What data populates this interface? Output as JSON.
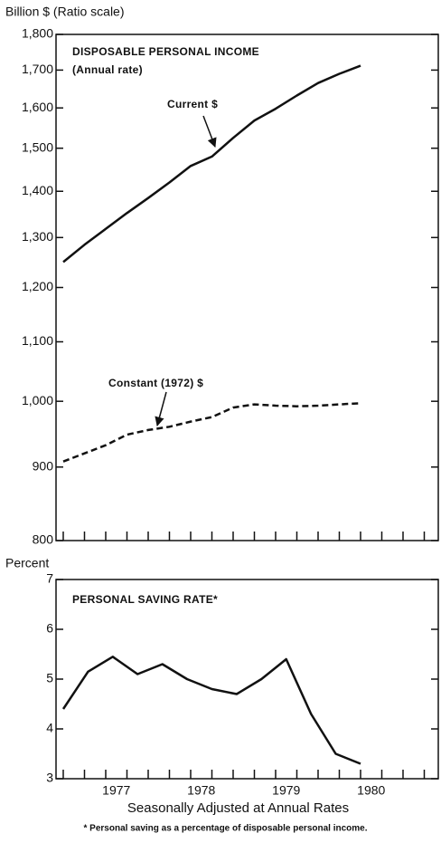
{
  "chart_data": [
    {
      "type": "line",
      "ylabel": "Billion $ (Ratio scale)",
      "title": "DISPOSABLE PERSONAL INCOME",
      "subtitle": "(Annual rate)",
      "log": true,
      "ylim": [
        800,
        1800
      ],
      "yticks": [
        800,
        900,
        {
          "value": 1000,
          "label": "1,000"
        },
        {
          "value": 1100,
          "label": "1,100"
        },
        {
          "value": 1200,
          "label": "1,200"
        },
        {
          "value": 1300,
          "label": "1,300"
        },
        {
          "value": 1400,
          "label": "1,400"
        },
        {
          "value": 1500,
          "label": "1,500"
        },
        {
          "value": 1600,
          "label": "1,600"
        },
        {
          "value": 1700,
          "label": "1,700"
        },
        {
          "value": 1800,
          "label": "1,800"
        }
      ],
      "xlim": [
        1976.79,
        1981.29
      ],
      "x": [
        1976.875,
        1977.125,
        1977.375,
        1977.625,
        1977.875,
        1978.125,
        1978.375,
        1978.625,
        1978.875,
        1979.125,
        1979.375,
        1979.625,
        1979.875,
        1980.125,
        1980.375
      ],
      "series": [
        {
          "name": "Current $",
          "color": "#111111",
          "dash": false,
          "values": [
            1250,
            1285,
            1318,
            1352,
            1385,
            1420,
            1458,
            1480,
            1525,
            1568,
            1598,
            1632,
            1665,
            1690,
            1712
          ]
        },
        {
          "name": "Constant (1972) $",
          "color": "#111111",
          "dash": true,
          "values": [
            908,
            920,
            932,
            948,
            955,
            960,
            968,
            975,
            990,
            995,
            993,
            992,
            993,
            995,
            997
          ]
        }
      ]
    },
    {
      "type": "line",
      "ylabel": "Percent",
      "title": "PERSONAL SAVING RATE*",
      "ylim": [
        3,
        7
      ],
      "yticks": [
        3,
        4,
        5,
        6,
        7
      ],
      "xlim": [
        1976.79,
        1981.29
      ],
      "xticks": [
        {
          "value": 1977.5,
          "label": "1977"
        },
        {
          "value": 1978.5,
          "label": "1978"
        },
        {
          "value": 1979.5,
          "label": "1979"
        },
        {
          "value": 1980.5,
          "label": "1980"
        }
      ],
      "x": [
        1976.875,
        1977.167,
        1977.458,
        1977.75,
        1978.042,
        1978.333,
        1978.625,
        1978.917,
        1979.208,
        1979.5,
        1979.792,
        1980.083,
        1980.375
      ],
      "series": [
        {
          "color": "#111111",
          "dash": false,
          "values": [
            4.4,
            5.15,
            5.45,
            5.1,
            5.3,
            5.0,
            4.8,
            4.7,
            5.0,
            5.4,
            4.3,
            3.5,
            3.3
          ]
        }
      ],
      "xlabel": "Seasonally Adjusted at Annual Rates",
      "footnote": "* Personal saving as a percentage of disposable personal income."
    }
  ]
}
